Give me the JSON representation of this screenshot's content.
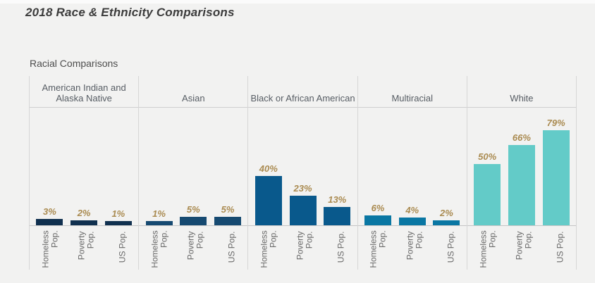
{
  "page": {
    "title": "2018 Race & Ethnicity Comparisons",
    "subtitle": "Racial Comparisons"
  },
  "chart_data": {
    "type": "bar",
    "title": "Racial Comparisons",
    "categories": [
      "Homeless Pop.",
      "Poverty Pop.",
      "US Pop."
    ],
    "groups": [
      {
        "label": "American Indian and Alaska Native",
        "color": "#10304f",
        "values": [
          3,
          2,
          1
        ]
      },
      {
        "label": "Asian",
        "color": "#164a71",
        "values": [
          1,
          5,
          5
        ]
      },
      {
        "label": "Black or African American",
        "color": "#09598c",
        "values": [
          40,
          23,
          13
        ]
      },
      {
        "label": "Multiracial",
        "color": "#0a77a3",
        "values": [
          6,
          4,
          2
        ]
      },
      {
        "label": "White",
        "color": "#63cbc8",
        "values": [
          50,
          66,
          79
        ]
      }
    ],
    "value_suffix": "%",
    "ylim": [
      0,
      100
    ],
    "value_label_color": "#aa8b51",
    "legend": "none",
    "grid": "column-dividers-only",
    "bar_orientation": "vertical"
  }
}
